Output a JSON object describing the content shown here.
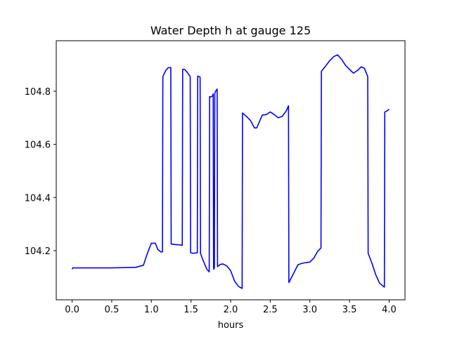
{
  "chart_data": {
    "type": "line",
    "title": "Water Depth h at gauge 125",
    "xlabel": "hours",
    "ylabel": "",
    "xlim": [
      -0.2,
      4.2
    ],
    "ylim": [
      104.015,
      104.99
    ],
    "xticks": [
      0.0,
      0.5,
      1.0,
      1.5,
      2.0,
      2.5,
      3.0,
      3.5,
      4.0
    ],
    "xtick_labels": [
      "0.0",
      "0.5",
      "1.0",
      "1.5",
      "2.0",
      "2.5",
      "3.0",
      "3.5",
      "4.0"
    ],
    "yticks": [
      104.2,
      104.4,
      104.6,
      104.8
    ],
    "ytick_labels": [
      "104.2",
      "104.4",
      "104.6",
      "104.8"
    ],
    "grid": false,
    "legend": "none",
    "series": [
      {
        "color": "#0000ff",
        "points": [
          [
            0.0,
            104.13
          ],
          [
            0.01,
            104.135
          ],
          [
            0.2,
            104.135
          ],
          [
            0.5,
            104.135
          ],
          [
            0.8,
            104.137
          ],
          [
            0.9,
            104.145
          ],
          [
            0.95,
            104.19
          ],
          [
            1.0,
            104.228
          ],
          [
            1.05,
            104.228
          ],
          [
            1.08,
            104.205
          ],
          [
            1.12,
            104.195
          ],
          [
            1.14,
            104.195
          ],
          [
            1.145,
            104.855
          ],
          [
            1.18,
            104.877
          ],
          [
            1.21,
            104.888
          ],
          [
            1.245,
            104.889
          ],
          [
            1.25,
            104.225
          ],
          [
            1.3,
            104.223
          ],
          [
            1.35,
            104.222
          ],
          [
            1.39,
            104.22
          ],
          [
            1.395,
            104.883
          ],
          [
            1.42,
            104.882
          ],
          [
            1.45,
            104.872
          ],
          [
            1.49,
            104.855
          ],
          [
            1.495,
            104.192
          ],
          [
            1.52,
            104.19
          ],
          [
            1.58,
            104.192
          ],
          [
            1.585,
            104.857
          ],
          [
            1.615,
            104.853
          ],
          [
            1.62,
            104.19
          ],
          [
            1.65,
            104.165
          ],
          [
            1.7,
            104.13
          ],
          [
            1.73,
            104.12
          ],
          [
            1.735,
            104.78
          ],
          [
            1.75,
            104.778
          ],
          [
            1.77,
            104.782
          ],
          [
            1.78,
            104.79
          ],
          [
            1.785,
            104.13
          ],
          [
            1.795,
            104.135
          ],
          [
            1.8,
            104.79
          ],
          [
            1.81,
            104.8
          ],
          [
            1.83,
            104.808
          ],
          [
            1.835,
            104.14
          ],
          [
            1.87,
            104.148
          ],
          [
            1.9,
            104.15
          ],
          [
            1.95,
            104.143
          ],
          [
            2.0,
            104.125
          ],
          [
            2.05,
            104.085
          ],
          [
            2.1,
            104.065
          ],
          [
            2.145,
            104.058
          ],
          [
            2.15,
            104.718
          ],
          [
            2.2,
            104.705
          ],
          [
            2.25,
            104.69
          ],
          [
            2.3,
            104.662
          ],
          [
            2.33,
            104.662
          ],
          [
            2.37,
            104.69
          ],
          [
            2.4,
            104.71
          ],
          [
            2.45,
            104.712
          ],
          [
            2.5,
            104.722
          ],
          [
            2.55,
            104.712
          ],
          [
            2.6,
            104.7
          ],
          [
            2.65,
            104.705
          ],
          [
            2.7,
            104.725
          ],
          [
            2.73,
            104.745
          ],
          [
            2.735,
            104.08
          ],
          [
            2.77,
            104.1
          ],
          [
            2.85,
            104.147
          ],
          [
            2.9,
            104.152
          ],
          [
            2.95,
            104.155
          ],
          [
            3.0,
            104.157
          ],
          [
            3.05,
            104.172
          ],
          [
            3.1,
            104.198
          ],
          [
            3.14,
            104.21
          ],
          [
            3.145,
            104.875
          ],
          [
            3.2,
            104.895
          ],
          [
            3.25,
            104.915
          ],
          [
            3.3,
            104.93
          ],
          [
            3.35,
            104.937
          ],
          [
            3.4,
            104.92
          ],
          [
            3.45,
            104.897
          ],
          [
            3.5,
            104.882
          ],
          [
            3.55,
            104.868
          ],
          [
            3.6,
            104.878
          ],
          [
            3.65,
            104.892
          ],
          [
            3.69,
            104.885
          ],
          [
            3.73,
            104.855
          ],
          [
            3.735,
            104.19
          ],
          [
            3.78,
            104.155
          ],
          [
            3.83,
            104.11
          ],
          [
            3.88,
            104.077
          ],
          [
            3.94,
            104.063
          ],
          [
            3.945,
            104.722
          ],
          [
            3.97,
            104.725
          ],
          [
            4.0,
            104.732
          ]
        ]
      }
    ]
  }
}
